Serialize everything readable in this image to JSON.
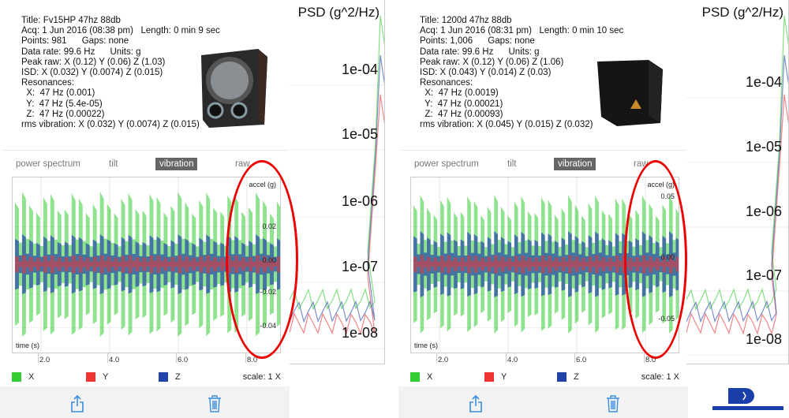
{
  "panels": [
    {
      "info": [
        "Title: Fv15HP 47hz 88db",
        "Acq: 1 Jun 2016 (08:38 pm)   Length: 0 min 9 sec",
        "Points: 981      Gaps: none",
        "Data rate: 99.6 Hz      Units: g",
        "",
        "Peak raw: X (0.12) Y (0.06) Z (1.03)",
        "ISD: X (0.032) Y (0.0074) Z (0.015)",
        "Resonances:",
        "  X:  47 Hz (0.001)",
        "  Y:  47 Hz (5.4e-05)",
        "  Z:  47 Hz (0.00022)",
        "rms vibration: X (0.032) Y (0.0074) Z (0.015)"
      ],
      "y_ticks": [
        "0.02",
        "0.00",
        "-0.02",
        "-0.04"
      ],
      "psd_labels": [
        "1e-04",
        "1e-05",
        "1e-06",
        "1e-07",
        "1e-08"
      ]
    },
    {
      "info": [
        "Title: 1200d 47hz 88db",
        "Acq: 1 Jun 2016 (08:31 pm)   Length: 0 min 10 sec",
        "Points: 1,006      Gaps: none",
        "Data rate: 99.6 Hz      Units: g",
        "",
        "Peak raw: X (0.12) Y (0.06) Z (1.06)",
        "ISD: X (0.043) Y (0.014) Z (0.03)",
        "Resonances:",
        "  X:  47 Hz (0.0019)",
        "  Y:  47 Hz (0.00021)",
        "  Z:  47 Hz (0.00093)",
        "rms vibration: X (0.045) Y (0.015) Z (0.032)"
      ],
      "y_ticks": [
        "0.05",
        "0.00",
        "-0.05"
      ],
      "psd_labels": [
        "1e-04",
        "1e-05",
        "1e-06",
        "1e-07",
        "1e-08"
      ]
    }
  ],
  "tabs": [
    "power spectrum",
    "tilt",
    "vibration",
    "raw"
  ],
  "y_axis_label": "accel (g)",
  "x_axis_label": "time (s)",
  "x_ticks": [
    "2.0",
    "4.0",
    "6.0",
    "8.0"
  ],
  "legend": [
    "X",
    "Y",
    "Z"
  ],
  "scale": "scale: 1 X",
  "psd_title": "PSD (g^2/Hz)",
  "colors": {
    "x": "#33cc33",
    "y": "#ee3333",
    "z": "#2244aa",
    "highlight": "#ee0000"
  }
}
